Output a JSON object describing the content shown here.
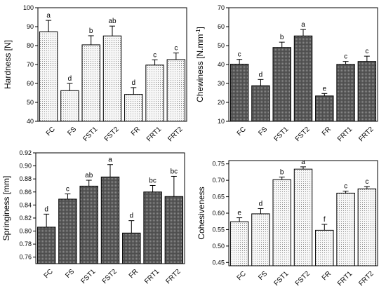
{
  "colors": {
    "dark_bar": "#555555",
    "light_bar": "#f6f6f6",
    "axis": "#000000"
  },
  "chart_data": [
    {
      "type": "bar",
      "ylabel": "Hardness [N]",
      "ylim": [
        40,
        100
      ],
      "yticks": [
        40,
        50,
        60,
        70,
        80,
        90,
        100
      ],
      "tick_decimals": 0,
      "fill": "dotted-light",
      "categories": [
        "FC",
        "FS",
        "FST1",
        "FST2",
        "FR",
        "FRT1",
        "FRT2"
      ],
      "values": [
        87.3,
        56.2,
        80.4,
        85.1,
        54.2,
        69.7,
        72.6
      ],
      "errors": [
        6.0,
        3.8,
        4.8,
        5.2,
        3.6,
        2.8,
        3.5
      ],
      "annotations": [
        "a",
        "d",
        "b",
        "ab",
        "d",
        "c",
        "c"
      ]
    },
    {
      "type": "bar",
      "ylabel": "Chewiness [N.mm",
      "ylabel_sup": "-1",
      "ylabel_end": "]",
      "ylim": [
        10,
        70
      ],
      "yticks": [
        10,
        20,
        30,
        40,
        50,
        60,
        70
      ],
      "tick_decimals": 0,
      "fill": "dotted-dark",
      "categories": [
        "FC",
        "FS",
        "FST1",
        "FST2",
        "FR",
        "FRT1",
        "FRT2"
      ],
      "values": [
        40.2,
        28.8,
        49.0,
        55.1,
        23.4,
        40.1,
        41.6
      ],
      "errors": [
        2.5,
        3.3,
        2.8,
        3.4,
        1.3,
        1.5,
        2.8
      ],
      "annotations": [
        "c",
        "d",
        "b",
        "a",
        "e",
        "c",
        "c"
      ]
    },
    {
      "type": "bar",
      "ylabel": "Springiness [mm]",
      "ylim": [
        0.75,
        0.92
      ],
      "yticks": [
        0.76,
        0.78,
        0.8,
        0.82,
        0.84,
        0.86,
        0.88,
        0.9,
        0.92
      ],
      "tick_decimals": 2,
      "fill": "dotted-dark",
      "categories": [
        "FC",
        "FS",
        "FST1",
        "FST2",
        "FR",
        "FRT1",
        "FRT2"
      ],
      "values": [
        0.806,
        0.849,
        0.869,
        0.883,
        0.797,
        0.86,
        0.853
      ],
      "errors": [
        0.02,
        0.008,
        0.009,
        0.019,
        0.019,
        0.01,
        0.031
      ],
      "annotations": [
        "d",
        "c",
        "ab",
        "a",
        "d",
        "bc",
        "bc"
      ]
    },
    {
      "type": "bar",
      "ylabel": "Cohesiveness",
      "ylim": [
        0.44,
        0.76
      ],
      "yticks": [
        0.45,
        0.5,
        0.55,
        0.6,
        0.65,
        0.7,
        0.75
      ],
      "tick_decimals": 2,
      "fill": "dotted-light",
      "categories": [
        "FC",
        "FS",
        "FST1",
        "FST2",
        "FR",
        "FRT1",
        "FRT2"
      ],
      "values": [
        0.574,
        0.598,
        0.702,
        0.734,
        0.548,
        0.661,
        0.674
      ],
      "errors": [
        0.012,
        0.016,
        0.008,
        0.007,
        0.018,
        0.006,
        0.007
      ],
      "annotations": [
        "e",
        "d",
        "b",
        "a",
        "f",
        "c",
        "c"
      ]
    }
  ]
}
